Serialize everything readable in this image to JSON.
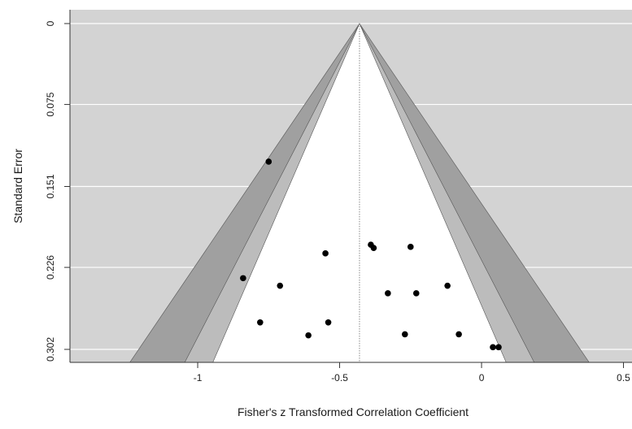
{
  "chart_data": {
    "type": "scatter",
    "subtype": "contour-enhanced funnel plot",
    "xlabel": "Fisher's z Transformed Correlation Coefficient",
    "ylabel": "Standard Error",
    "xlim": [
      -1.45,
      0.53
    ],
    "ylim": [
      0.302,
      0
    ],
    "y_axis_reversed": true,
    "x_ticks": [
      -1,
      -0.5,
      0,
      0.5
    ],
    "x_tick_labels": [
      "-1",
      "-0.5",
      "0",
      "0.5"
    ],
    "y_ticks": [
      0,
      0.075,
      0.151,
      0.226,
      0.302
    ],
    "y_tick_labels": [
      "0",
      "0.075",
      "0.151",
      "0.226",
      "0.302"
    ],
    "grid": "horizontal, white lines at y ticks",
    "center_estimate": -0.43,
    "contours": [
      {
        "level": 0.9,
        "z": 1.645,
        "color": "#ffffff"
      },
      {
        "level": 0.95,
        "z": 1.96,
        "color": "#bcbcbc"
      },
      {
        "level": 0.99,
        "z": 2.576,
        "color": "#a0a0a0"
      }
    ],
    "outside_color": "#d3d3d3",
    "points": [
      {
        "x": -0.75,
        "y": 0.128
      },
      {
        "x": -0.39,
        "y": 0.205
      },
      {
        "x": -0.38,
        "y": 0.208
      },
      {
        "x": -0.25,
        "y": 0.207
      },
      {
        "x": -0.55,
        "y": 0.213
      },
      {
        "x": -0.84,
        "y": 0.236
      },
      {
        "x": -0.71,
        "y": 0.243
      },
      {
        "x": -0.12,
        "y": 0.243
      },
      {
        "x": -0.33,
        "y": 0.25
      },
      {
        "x": -0.23,
        "y": 0.25
      },
      {
        "x": -0.78,
        "y": 0.277
      },
      {
        "x": -0.54,
        "y": 0.277
      },
      {
        "x": -0.61,
        "y": 0.289
      },
      {
        "x": -0.27,
        "y": 0.288
      },
      {
        "x": -0.08,
        "y": 0.288
      },
      {
        "x": 0.04,
        "y": 0.3
      },
      {
        "x": 0.06,
        "y": 0.3
      }
    ]
  }
}
